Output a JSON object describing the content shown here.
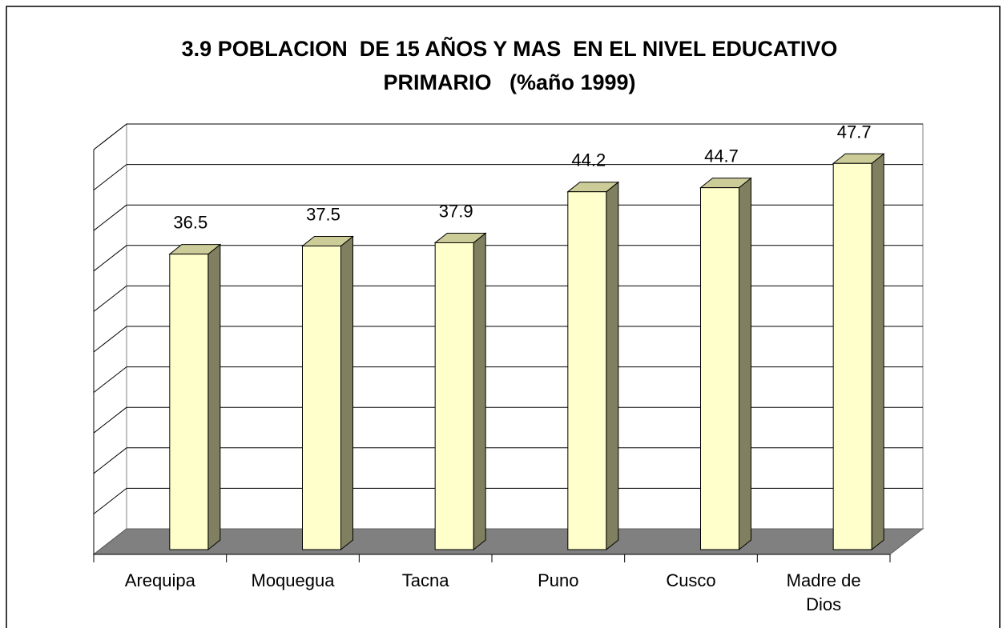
{
  "chart_data": {
    "type": "bar3d",
    "title": "3.9 POBLACION  DE 15 AÑOS Y MAS  EN EL NIVEL EDUCATIVO PRIMARIO   (%año 1999)",
    "categories": [
      "Arequipa",
      "Moquegua",
      "Tacna",
      "Puno",
      "Cusco",
      "Madre de Dios"
    ],
    "values": [
      36.5,
      37.5,
      37.9,
      44.2,
      44.7,
      47.7
    ],
    "color": "#ffffcc",
    "ylim": [
      0,
      50
    ],
    "yticks": [
      0,
      5,
      10,
      15,
      20,
      25,
      30,
      35,
      40,
      45,
      50
    ],
    "grid": true
  }
}
